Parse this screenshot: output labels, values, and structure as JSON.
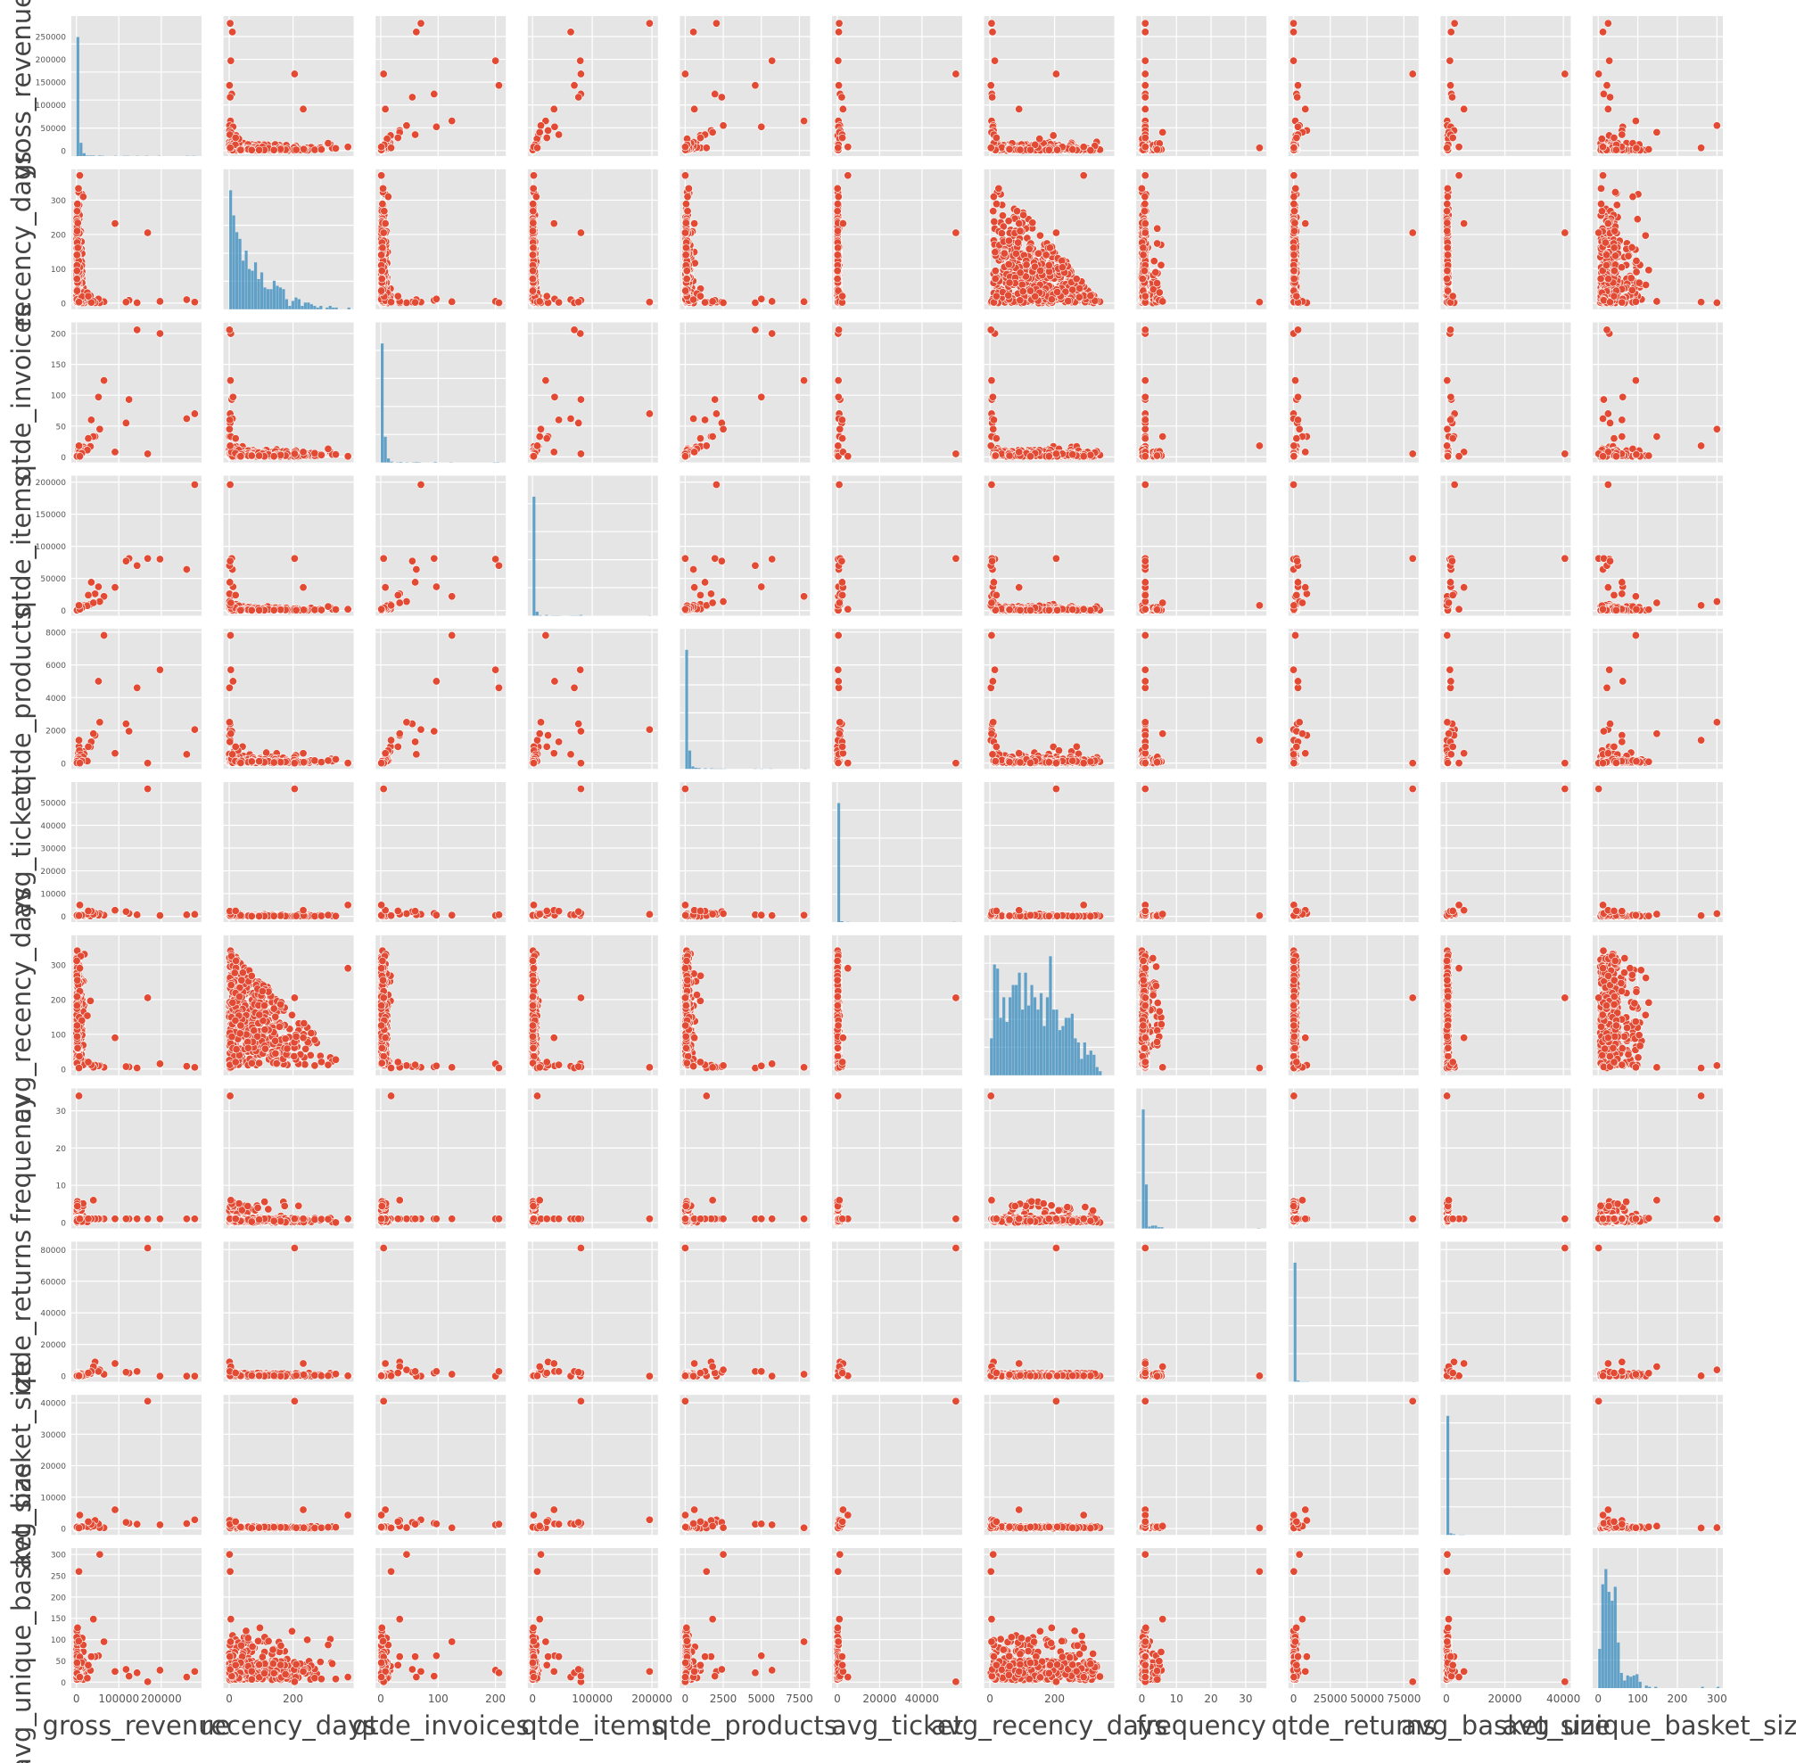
{
  "chart_data": {
    "type": "scatter",
    "subtype": "pairplot",
    "grid": true,
    "colors": {
      "scatter": "#e24a33",
      "hist": "#348abd",
      "panel": "#e5e5e5"
    },
    "variables": [
      {
        "name": "gross_revenue",
        "label": "gross_revenue",
        "range": [
          -12000,
          295000
        ],
        "ticks": [
          0,
          100000,
          200000
        ],
        "yticks": [
          0,
          50000,
          100000,
          150000,
          200000,
          250000
        ]
      },
      {
        "name": "recency_days",
        "label": "recency_days",
        "range": [
          -18,
          390
        ],
        "ticks": [
          0,
          200
        ],
        "yticks": [
          0,
          100,
          200,
          300
        ]
      },
      {
        "name": "qtde_invoices",
        "label": "qtde_invoices",
        "range": [
          -9,
          218
        ],
        "ticks": [
          0,
          100,
          200
        ],
        "yticks": [
          0,
          50,
          100,
          150,
          200
        ]
      },
      {
        "name": "qtde_items",
        "label": "qtde_items",
        "range": [
          -8000,
          210000
        ],
        "ticks": [
          0,
          100000,
          200000
        ],
        "yticks": [
          0,
          50000,
          100000,
          150000,
          200000
        ]
      },
      {
        "name": "qtde_products",
        "label": "qtde_products",
        "range": [
          -350,
          8200
        ],
        "ticks": [
          0,
          2500,
          5000,
          7500
        ],
        "yticks": [
          0,
          2000,
          4000,
          6000,
          8000
        ]
      },
      {
        "name": "avg_ticket",
        "label": "avg_ticket",
        "range": [
          -2500,
          59000
        ],
        "ticks": [
          0,
          20000,
          40000
        ],
        "yticks": [
          0,
          10000,
          20000,
          30000,
          40000,
          50000
        ]
      },
      {
        "name": "avg_recency_days",
        "label": "avg_recency_days",
        "range": [
          -18,
          385
        ],
        "ticks": [
          0,
          200
        ],
        "yticks": [
          0,
          100,
          200,
          300
        ]
      },
      {
        "name": "frequency",
        "label": "frequency",
        "range": [
          -1.6,
          36
        ],
        "ticks": [
          0,
          10,
          20,
          30
        ],
        "yticks": [
          0,
          10,
          20,
          30
        ]
      },
      {
        "name": "qtde_returns",
        "label": "qtde_returns",
        "range": [
          -3500,
          85000
        ],
        "ticks": [
          0,
          25000,
          50000,
          75000
        ],
        "yticks": [
          0,
          20000,
          40000,
          60000,
          80000
        ]
      },
      {
        "name": "avg_basket_size",
        "label": "avg_basket_size",
        "range": [
          -2000,
          42500
        ],
        "ticks": [
          0,
          20000,
          40000
        ],
        "yticks": [
          0,
          10000,
          20000,
          30000,
          40000
        ]
      },
      {
        "name": "avg_unique_basket_size",
        "label": "avg_unique_basket_size",
        "range": [
          -14,
          315
        ],
        "ticks": [
          0,
          100,
          200,
          300
        ],
        "yticks": [
          0,
          50,
          100,
          150,
          200,
          250,
          300
        ]
      }
    ],
    "outliers": [
      [
        279000,
        3,
        70,
        196000,
        2050,
        900,
        5,
        1,
        2,
        2800,
        25
      ],
      [
        260000,
        10,
        62,
        64000,
        540,
        700,
        8,
        1,
        1,
        1600,
        12
      ],
      [
        197000,
        5,
        200,
        80000,
        5700,
        400,
        15,
        1,
        1,
        1200,
        28
      ],
      [
        168000,
        205,
        5,
        80995,
        1,
        56000,
        205,
        1,
        80995,
        40500,
        1
      ],
      [
        143000,
        1,
        206,
        70000,
        4600,
        700,
        3,
        1,
        3000,
        1400,
        22
      ],
      [
        124000,
        8,
        93,
        81000,
        1950,
        1300,
        6,
        1,
        2000,
        1700,
        14
      ],
      [
        117000,
        3,
        55,
        77000,
        2400,
        2100,
        7,
        1,
        2500,
        2000,
        30
      ],
      [
        65000,
        4,
        124,
        22000,
        7800,
        520,
        5,
        1,
        1200,
        260,
        95
      ],
      [
        55000,
        1,
        45,
        14000,
        2500,
        1200,
        10,
        1,
        4000,
        300,
        300
      ],
      [
        52000,
        12,
        97,
        37000,
        5000,
        560,
        9,
        1,
        3000,
        1500,
        62
      ],
      [
        44000,
        1,
        33,
        26000,
        1700,
        1300,
        11,
        1,
        9000,
        2600,
        60
      ],
      [
        91000,
        232,
        8,
        36000,
        600,
        2700,
        90,
        1,
        8000,
        6000,
        25
      ],
      [
        8000,
        372,
        1,
        2000,
        5,
        5000,
        290,
        1,
        200,
        4300,
        12
      ],
      [
        6000,
        3,
        18,
        8000,
        1400,
        350,
        3,
        34,
        200,
        200,
        260
      ],
      [
        40000,
        5,
        33,
        12000,
        1800,
        1000,
        5,
        6,
        6000,
        800,
        148
      ],
      [
        35000,
        2,
        60,
        44000,
        1300,
        2300,
        12,
        1,
        3000,
        1400,
        60
      ],
      [
        28000,
        20,
        30,
        24000,
        1000,
        2400,
        20,
        1,
        2000,
        2200,
        40
      ]
    ]
  }
}
